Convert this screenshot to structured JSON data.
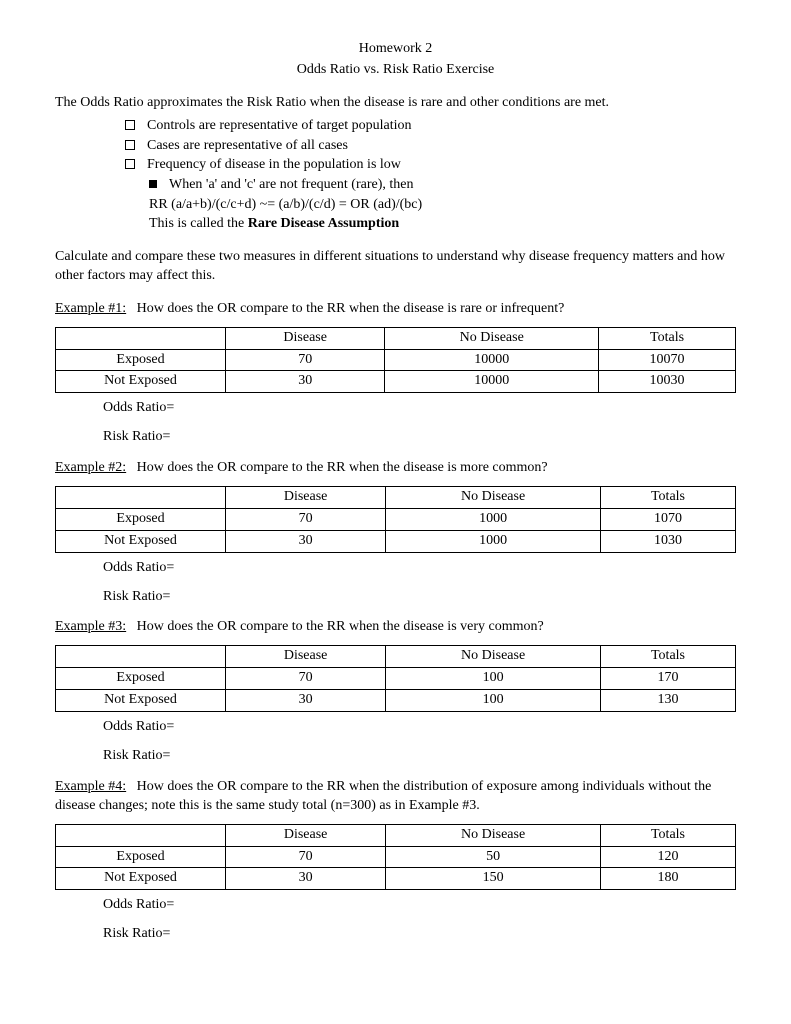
{
  "title1": "Homework 2",
  "title2": "Odds Ratio vs. Risk Ratio Exercise",
  "intro": "The Odds Ratio approximates the Risk Ratio when the disease is rare and other conditions are met.",
  "bullets": {
    "b1": "Controls are representative of target population",
    "b2": "Cases are representative of all cases",
    "b3": "Frequency of disease in the population is low",
    "sub1": "When 'a' and 'c' are not frequent (rare), then",
    "sub2": "RR (a/a+b)/(c/c+d) ~= (a/b)/(c/d)    = OR (ad)/(bc)",
    "sub3a": "This is called the ",
    "sub3b": "Rare Disease Assumption"
  },
  "para2": "Calculate and compare these two measures in different situations to understand why disease frequency matters and how other factors may affect this.",
  "headers": {
    "c1": "",
    "c2": "Disease",
    "c3": "No Disease",
    "c4": "Totals"
  },
  "rows": {
    "exposed": "Exposed",
    "notexposed": "Not Exposed"
  },
  "labels": {
    "or": "Odds Ratio=",
    "rr": "Risk Ratio="
  },
  "ex1": {
    "label": "Example #1:",
    "q": "How does the OR compare to the RR when the disease is rare or infrequent?",
    "r1": {
      "a": "70",
      "b": "10000",
      "c": "10070"
    },
    "r2": {
      "a": "30",
      "b": "10000",
      "c": "10030"
    }
  },
  "ex2": {
    "label": "Example #2:",
    "q": "How does the OR compare to the RR when the disease is more common?",
    "r1": {
      "a": "70",
      "b": "1000",
      "c": "1070"
    },
    "r2": {
      "a": "30",
      "b": "1000",
      "c": "1030"
    }
  },
  "ex3": {
    "label": "Example #3:",
    "q": "How does the OR compare to the RR when the disease is very common?",
    "r1": {
      "a": "70",
      "b": "100",
      "c": "170"
    },
    "r2": {
      "a": "30",
      "b": "100",
      "c": "130"
    }
  },
  "ex4": {
    "label": "Example #4:",
    "q": "How does the OR compare to the RR when the distribution of exposure among individuals without the disease changes; note this is the same study total (n=300) as in Example #3.",
    "r1": {
      "a": "70",
      "b": "50",
      "c": "120"
    },
    "r2": {
      "a": "30",
      "b": "150",
      "c": "180"
    }
  }
}
